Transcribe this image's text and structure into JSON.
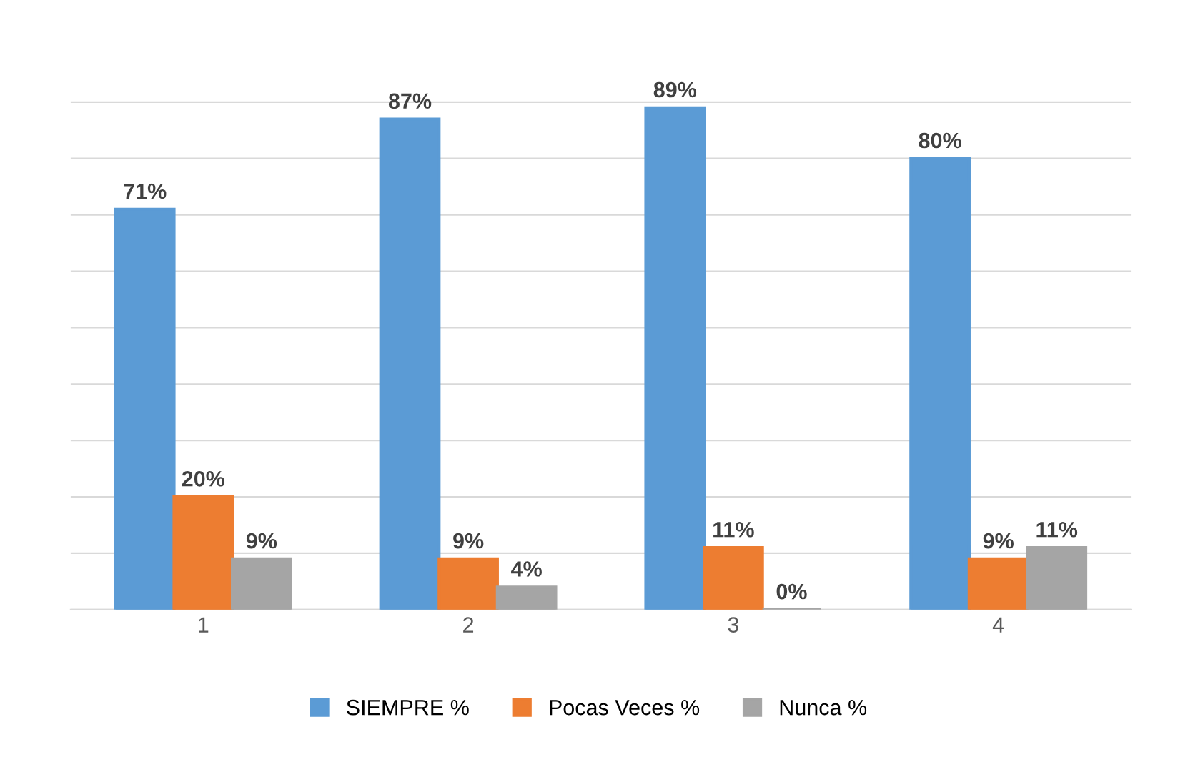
{
  "chart_data": {
    "type": "bar",
    "categories": [
      "1",
      "2",
      "3",
      "4"
    ],
    "series": [
      {
        "name": "SIEMPRE %",
        "color": "#5b9bd5",
        "values": [
          71,
          87,
          89,
          80
        ],
        "value_labels": [
          "71%",
          "87%",
          "89%",
          "80%"
        ]
      },
      {
        "name": "Pocas Veces %",
        "color": "#ed7d31",
        "values": [
          20,
          9,
          11,
          9
        ],
        "value_labels": [
          "20%",
          "9%",
          "11%",
          "9%"
        ]
      },
      {
        "name": "Nunca %",
        "color": "#a5a5a5",
        "values": [
          9,
          4,
          0,
          11
        ],
        "value_labels": [
          "9%",
          "4%",
          "0%",
          "11%"
        ]
      }
    ],
    "ylim": [
      0,
      100
    ],
    "yticks": [
      {
        "value": 0,
        "label": null
      },
      {
        "value": 10,
        "label": null
      },
      {
        "value": 20,
        "label": null
      },
      {
        "value": 30,
        "label": null
      },
      {
        "value": 40,
        "label": null
      },
      {
        "value": 50,
        "label": null
      },
      {
        "value": 60,
        "label": null
      },
      {
        "value": 70,
        "label": null
      },
      {
        "value": 80,
        "label": null
      },
      {
        "value": 90,
        "label": null
      },
      {
        "value": 100,
        "label": null
      }
    ],
    "tick_labels": "x",
    "grid": "y",
    "legend": "bottom"
  }
}
